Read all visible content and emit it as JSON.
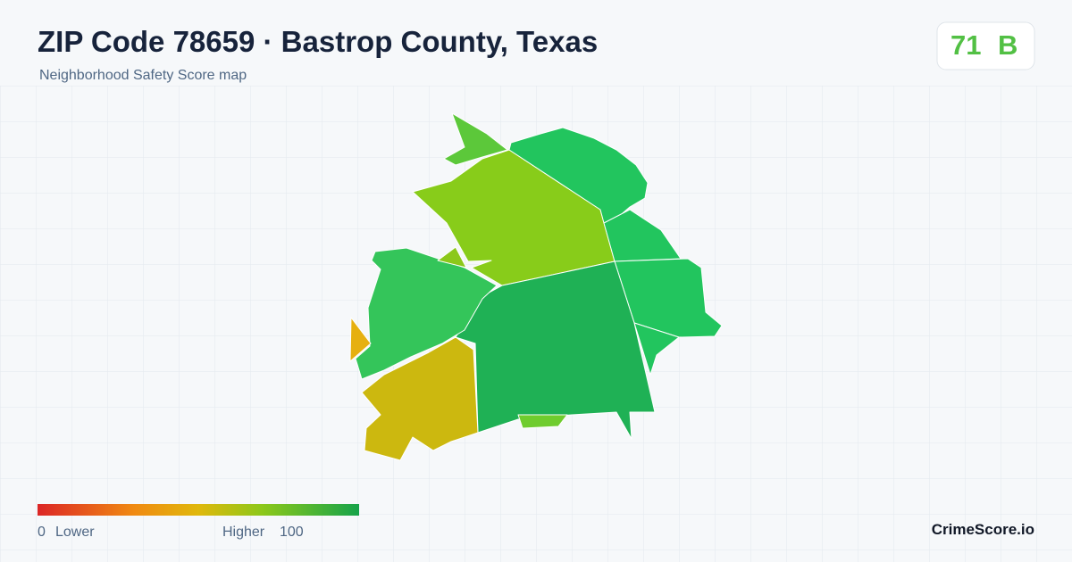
{
  "header": {
    "title": "ZIP Code 78659 · Bastrop County, Texas",
    "subtitle": "Neighborhood Safety Score map"
  },
  "score": {
    "value": "71",
    "grade": "B"
  },
  "legend": {
    "min": "0",
    "min_label": "Lower",
    "max_label": "Higher",
    "max": "100"
  },
  "brand": "CrimeScore.io"
}
